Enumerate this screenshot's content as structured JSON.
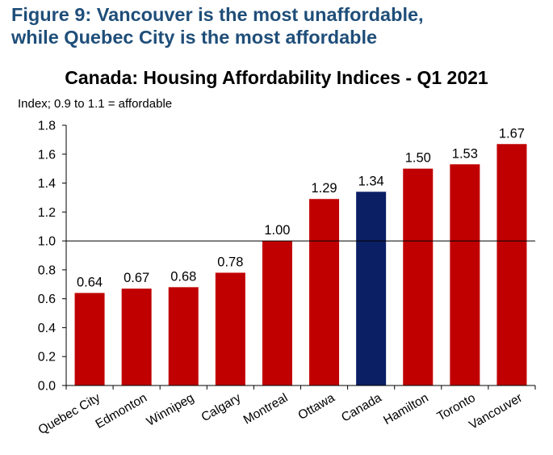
{
  "figure": {
    "title_line1": "Figure 9: Vancouver is the most unaffordable,",
    "title_line2": "while Quebec City is the most affordable"
  },
  "colors": {
    "title": "#1f4e79",
    "bar_default": "#c00000",
    "bar_highlight": "#0a1f64"
  },
  "chart_data": {
    "type": "bar",
    "title": "Canada: Housing Affordability Indices - Q1 2021",
    "ylabel": "Index; 0.9 to 1.1 = affordable",
    "xlabel": "",
    "categories": [
      "Quebec City",
      "Edmonton",
      "Winnipeg",
      "Calgary",
      "Montreal",
      "Ottawa",
      "Canada",
      "Hamilton",
      "Toronto",
      "Vancouver"
    ],
    "values": [
      0.64,
      0.67,
      0.68,
      0.78,
      1.0,
      1.29,
      1.34,
      1.5,
      1.53,
      1.67
    ],
    "value_labels": [
      "0.64",
      "0.67",
      "0.68",
      "0.78",
      "1.00",
      "1.29",
      "1.34",
      "1.50",
      "1.53",
      "1.67"
    ],
    "highlight_category": "Canada",
    "ylim": [
      0.0,
      1.8
    ],
    "yticks": [
      "0.0",
      "0.2",
      "0.4",
      "0.6",
      "0.8",
      "1.0",
      "1.2",
      "1.4",
      "1.6",
      "1.8"
    ],
    "reference_line": 1.0,
    "grid": false,
    "legend": "none"
  }
}
